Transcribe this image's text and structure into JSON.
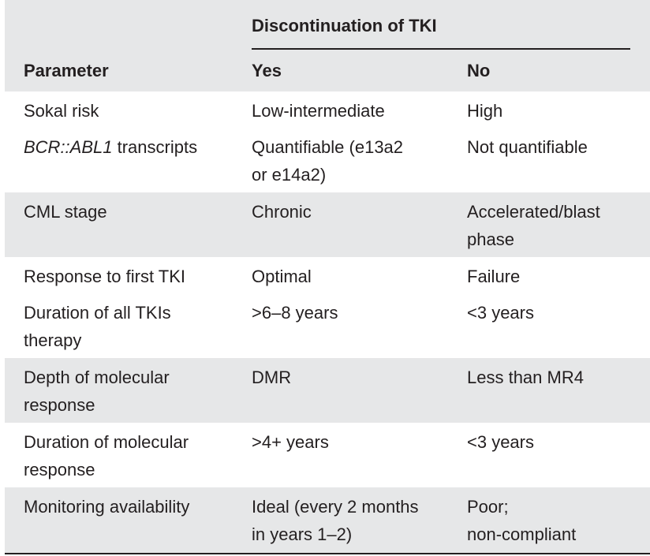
{
  "table": {
    "header": {
      "group_label": "Discontinuation of TKI",
      "parameter_label": "Parameter",
      "yes_label": "Yes",
      "no_label": "No"
    },
    "rows": [
      {
        "parameter": "Sokal risk",
        "yes": "Low-intermediate",
        "no": "High"
      },
      {
        "parameter_italic": "BCR::ABL1",
        "parameter_rest": " transcripts",
        "yes": "Quantifiable (e13a2\nor e14a2)",
        "no": "Not quantifiable"
      },
      {
        "parameter": "CML stage",
        "yes": "Chronic",
        "no": "Accelerated/blast\nphase"
      },
      {
        "parameter": "Response to first TKI",
        "yes": "Optimal",
        "no": "Failure"
      },
      {
        "parameter": "Duration of all TKIs\ntherapy",
        "yes": ">6–8 years",
        "no": "<3 years"
      },
      {
        "parameter": "Depth of molecular\nresponse",
        "yes": "DMR",
        "no": "Less than MR4"
      },
      {
        "parameter": "Duration of molecular\nresponse",
        "yes": ">4+ years",
        "no": "<3 years"
      },
      {
        "parameter": "Monitoring availability",
        "yes": "Ideal (every 2 months\nin years 1–2)",
        "no": "Poor;\nnon-compliant"
      }
    ]
  },
  "colors": {
    "shade": "#e6e7e8",
    "text": "#231f20"
  }
}
